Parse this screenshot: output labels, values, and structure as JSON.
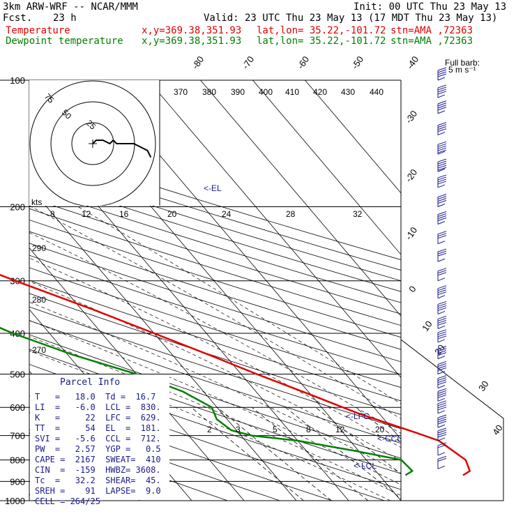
{
  "header": {
    "model": "3km ARW-WRF -- NCAR/MMM",
    "init": "Init: 00 UTC Thu 23 May 13",
    "fcst_label": "Fcst.",
    "fcst_value": "23 h",
    "valid": "Valid: 23 UTC Thu 23 May 13 (17 MDT Thu 23 May 13)",
    "temp_label": "Temperature",
    "dew_label": "Dewpoint temperature",
    "xy": "x,y=369.38,351.93",
    "latlon": "lat,lon= 35.22,-101.72",
    "stn": "stn=AMA ,72363"
  },
  "full_barb_label": "Full barb:",
  "full_barb_units": "5 m s⁻¹",
  "colors": {
    "temperature": "#e00000",
    "dewpoint": "#008000",
    "info": "#1a1a8c"
  },
  "chart_data": {
    "type": "line",
    "title": "",
    "yscale": "log-pressure",
    "ylabel": "",
    "ylim": [
      1000,
      100
    ],
    "pressure_ticks": [
      100,
      200,
      300,
      400,
      500,
      600,
      700,
      800,
      900,
      1000
    ],
    "temperature_ticks": [
      -80,
      -70,
      -60,
      -50,
      -40,
      -30,
      -20,
      -10,
      0,
      10,
      20,
      30,
      40
    ],
    "theta_labels": [
      370,
      380,
      390,
      400,
      410,
      420,
      430,
      440
    ],
    "theta_left_labels": [
      290,
      280,
      270
    ],
    "mixing_ratio_labels": [
      "2",
      "3",
      "5",
      "8",
      "12",
      "20"
    ],
    "hodograph_labels": [
      "kts",
      "8",
      "12",
      "16",
      "20",
      "24",
      "28",
      "32"
    ],
    "hodograph_rings": [
      "25",
      "50",
      "75"
    ],
    "level_markers": [
      "<-EL",
      "<-LFC",
      "<-CCL",
      "<-LCL"
    ],
    "series": [
      {
        "name": "Temperature",
        "points": [
          [
            870,
            26
          ],
          [
            850,
            28
          ],
          [
            800,
            29
          ],
          [
            720,
            27
          ],
          [
            690,
            24
          ],
          [
            620,
            16
          ],
          [
            560,
            10
          ],
          [
            500,
            3
          ],
          [
            450,
            -3
          ],
          [
            400,
            -10
          ],
          [
            350,
            -18
          ],
          [
            300,
            -28
          ],
          [
            250,
            -39
          ],
          [
            200,
            -51
          ],
          [
            180,
            -56
          ],
          [
            150,
            -60
          ],
          [
            130,
            -62
          ],
          [
            115,
            -64
          ],
          [
            100,
            -64
          ]
        ]
      },
      {
        "name": "Dewpoint temperature",
        "points": [
          [
            870,
            15
          ],
          [
            850,
            17
          ],
          [
            800,
            16.7
          ],
          [
            760,
            9
          ],
          [
            720,
            0
          ],
          [
            700,
            -8
          ],
          [
            680,
            -11
          ],
          [
            640,
            -12
          ],
          [
            600,
            -11
          ],
          [
            550,
            -14
          ],
          [
            500,
            -20
          ],
          [
            450,
            -29
          ],
          [
            400,
            -37
          ],
          [
            350,
            -44
          ],
          [
            300,
            -52
          ],
          [
            260,
            -59
          ],
          [
            220,
            -65
          ],
          [
            200,
            -69
          ],
          [
            170,
            -72
          ],
          [
            140,
            -75
          ],
          [
            120,
            -78
          ],
          [
            100,
            -81
          ]
        ]
      }
    ],
    "wind_barbs": [
      {
        "p": 100,
        "speed_ms": 20
      },
      {
        "p": 110,
        "speed_ms": 20
      },
      {
        "p": 120,
        "speed_ms": 20
      },
      {
        "p": 135,
        "speed_ms": 20
      },
      {
        "p": 150,
        "speed_ms": 25
      },
      {
        "p": 165,
        "speed_ms": 25
      },
      {
        "p": 180,
        "speed_ms": 20
      },
      {
        "p": 200,
        "speed_ms": 20
      },
      {
        "p": 220,
        "speed_ms": 20
      },
      {
        "p": 245,
        "speed_ms": 15
      },
      {
        "p": 270,
        "speed_ms": 15
      },
      {
        "p": 300,
        "speed_ms": 15
      },
      {
        "p": 330,
        "speed_ms": 20
      },
      {
        "p": 360,
        "speed_ms": 20
      },
      {
        "p": 390,
        "speed_ms": 20
      },
      {
        "p": 420,
        "speed_ms": 20
      },
      {
        "p": 460,
        "speed_ms": 20
      },
      {
        "p": 500,
        "speed_ms": 20
      },
      {
        "p": 540,
        "speed_ms": 20
      },
      {
        "p": 580,
        "speed_ms": 20
      },
      {
        "p": 620,
        "speed_ms": 20
      },
      {
        "p": 670,
        "speed_ms": 20
      },
      {
        "p": 720,
        "speed_ms": 20
      },
      {
        "p": 780,
        "speed_ms": 10
      },
      {
        "p": 840,
        "speed_ms": 10
      }
    ],
    "hodograph": [
      [
        0,
        0
      ],
      [
        1,
        1
      ],
      [
        3,
        1
      ],
      [
        5,
        0
      ],
      [
        6,
        1
      ],
      [
        7,
        0
      ],
      [
        9,
        0
      ],
      [
        12,
        0
      ],
      [
        14,
        -1
      ],
      [
        16,
        -2
      ],
      [
        17,
        -4
      ]
    ]
  },
  "parcel_info": {
    "title": "Parcel Info",
    "rows": [
      "T   =   18.0  Td =  16.7",
      "LI  =   -6.0  LCL =  830.",
      "K   =     22  LFC =  629.",
      "TT  =     54  EL  =  181.",
      "SVI =   -5.6  CCL =  712.",
      "PW  =   2.57  YGP =   0.5",
      "CAPE =  2167  SWEAT=  410",
      "CIN  =  -159  HWBZ= 3608.",
      "Tc  =   32.2  SHEAR=  45.",
      "SREH =    91  LAPSE=  9.0",
      "CELL = 264/25"
    ]
  }
}
